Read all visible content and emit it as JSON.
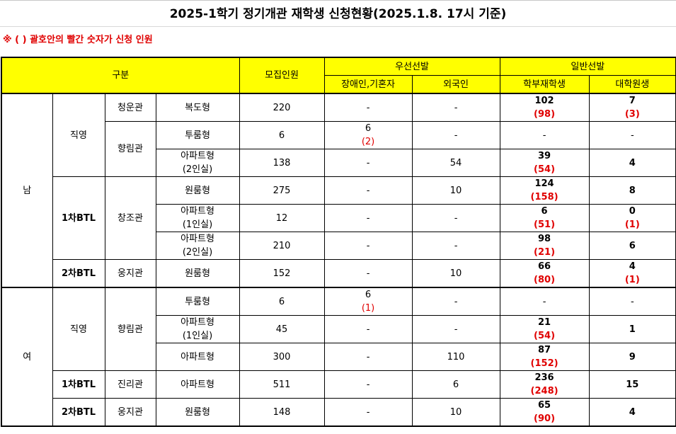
{
  "title": "2025-1학기 정기개관 재학생 신청현황(2025.1.8. 17시 기준)",
  "note": "※ ( ) 괄호안의 빨간 숫자가 신청 인원",
  "headers": {
    "category": "구분",
    "recruit": "모집인원",
    "priority": "우선선발",
    "priority_disabled": "장애인,기혼자",
    "priority_foreign": "외국인",
    "general": "일반선발",
    "general_undergrad": "학부재학생",
    "general_grad": "대학원생"
  },
  "groups": {
    "male": "남",
    "female": "여"
  },
  "rows": {
    "m1": {
      "type": "직영",
      "hall": "청운관",
      "room": "복도형",
      "recruit": "220",
      "dis_val": "-",
      "dis_apply": "",
      "foreign": "-",
      "ug_val": "102",
      "ug_apply": "(98)",
      "gr_val": "7",
      "gr_apply": "(3)"
    },
    "m2": {
      "hall": "향림관",
      "room": "투룸형",
      "recruit": "6",
      "dis_val": "6",
      "dis_apply": "(2)",
      "foreign": "-",
      "ug_val": "-",
      "ug_apply": "",
      "gr_val": "-",
      "gr_apply": ""
    },
    "m3": {
      "room_l1": "아파트형",
      "room_l2": "(2인실)",
      "recruit": "138",
      "dis_val": "-",
      "dis_apply": "",
      "foreign": "54",
      "ug_val": "39",
      "ug_apply": "(54)",
      "gr_val": "4",
      "gr_apply": ""
    },
    "m4": {
      "type": "1차BTL",
      "hall": "창조관",
      "room": "원룸형",
      "recruit": "275",
      "dis_val": "-",
      "dis_apply": "",
      "foreign": "10",
      "ug_val": "124",
      "ug_apply": "(158)",
      "gr_val": "8",
      "gr_apply": ""
    },
    "m5": {
      "room_l1": "아파트형",
      "room_l2": "(1인실)",
      "recruit": "12",
      "dis_val": "-",
      "dis_apply": "",
      "foreign": "-",
      "ug_val": "6",
      "ug_apply": "(51)",
      "gr_val": "0",
      "gr_apply": "(1)"
    },
    "m6": {
      "room_l1": "아파트형",
      "room_l2": "(2인실)",
      "recruit": "210",
      "dis_val": "-",
      "dis_apply": "",
      "foreign": "-",
      "ug_val": "98",
      "ug_apply": "(21)",
      "gr_val": "6",
      "gr_apply": ""
    },
    "m7": {
      "type": "2차BTL",
      "hall": "웅지관",
      "room": "원룸형",
      "recruit": "152",
      "dis_val": "-",
      "dis_apply": "",
      "foreign": "10",
      "ug_val": "66",
      "ug_apply": "(80)",
      "gr_val": "4",
      "gr_apply": "(1)"
    },
    "f1": {
      "type": "직영",
      "hall": "향림관",
      "room": "투룸형",
      "recruit": "6",
      "dis_val": "6",
      "dis_apply": "(1)",
      "foreign": "-",
      "ug_val": "-",
      "ug_apply": "",
      "gr_val": "-",
      "gr_apply": ""
    },
    "f2": {
      "room_l1": "아파트형",
      "room_l2": "(1인실)",
      "recruit": "45",
      "dis_val": "-",
      "dis_apply": "",
      "foreign": "-",
      "ug_val": "21",
      "ug_apply": "(54)",
      "gr_val": "1",
      "gr_apply": ""
    },
    "f3": {
      "room": "아파트형",
      "recruit": "300",
      "dis_val": "-",
      "dis_apply": "",
      "foreign": "110",
      "ug_val": "87",
      "ug_apply": "(152)",
      "gr_val": "9",
      "gr_apply": ""
    },
    "f4": {
      "type": "1차BTL",
      "hall": "진리관",
      "room": "아파트형",
      "recruit": "511",
      "dis_val": "-",
      "dis_apply": "",
      "foreign": "6",
      "ug_val": "236",
      "ug_apply": "(248)",
      "gr_val": "15",
      "gr_apply": ""
    },
    "f5": {
      "type": "2차BTL",
      "hall": "웅지관",
      "room": "원룸형",
      "recruit": "148",
      "dis_val": "-",
      "dis_apply": "",
      "foreign": "10",
      "ug_val": "65",
      "ug_apply": "(90)",
      "gr_val": "4",
      "gr_apply": ""
    }
  }
}
